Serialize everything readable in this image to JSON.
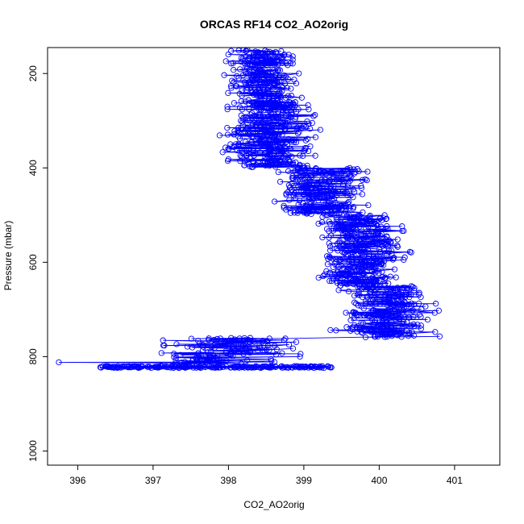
{
  "chart_data": {
    "type": "scatter",
    "title": "ORCAS RF14 CO2_AO2orig",
    "xlabel": "CO2_AO2orig",
    "ylabel": "Pressure (mbar)",
    "xlim": [
      395.6,
      401.6
    ],
    "ylim": [
      1030,
      145
    ],
    "y_reversed": true,
    "xticks": [
      "396",
      "397",
      "398",
      "399",
      "400",
      "401"
    ],
    "yticks": [
      "200",
      "400",
      "600",
      "800",
      "1000"
    ],
    "series_color": "#0000ff",
    "marker": "open-circle",
    "connected_by_line": true,
    "grid": false,
    "legend": "none",
    "profile_segments": [
      {
        "p_range": [
          150,
          250
        ],
        "x_mean": 398.45,
        "x_spread": 0.35
      },
      {
        "p_range": [
          250,
          400
        ],
        "x_mean": 398.55,
        "x_spread": 0.45
      },
      {
        "p_range": [
          400,
          500
        ],
        "x_mean": 399.2,
        "x_spread": 0.5
      },
      {
        "p_range": [
          500,
          650
        ],
        "x_mean": 399.75,
        "x_spread": 0.45
      },
      {
        "p_range": [
          650,
          760
        ],
        "x_mean": 400.1,
        "x_spread": 0.5
      },
      {
        "p_range": [
          760,
          815
        ],
        "x_mean": 398.0,
        "x_spread": 0.7
      }
    ],
    "boundary_layer": {
      "pressure": 822,
      "x_range": [
        396.3,
        399.4
      ]
    }
  }
}
